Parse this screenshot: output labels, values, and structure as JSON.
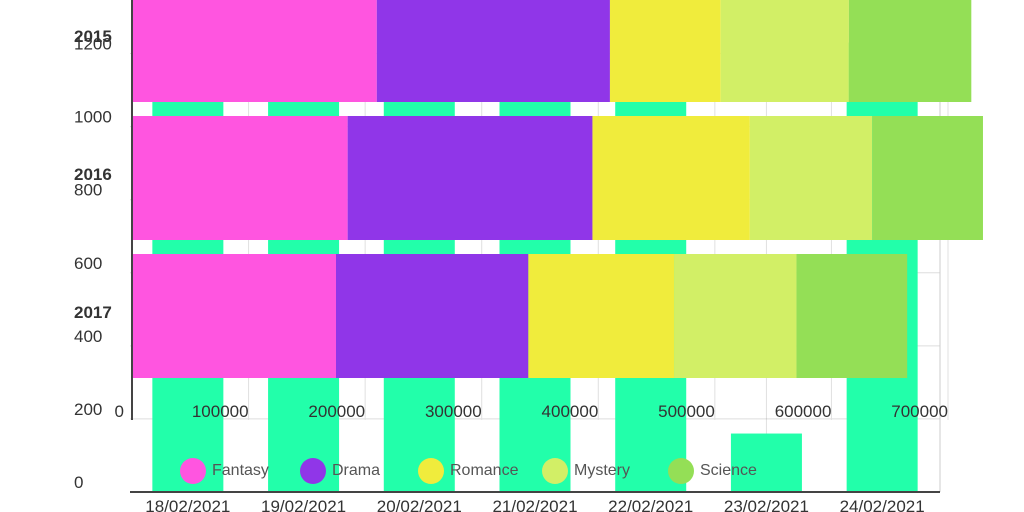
{
  "chart_data": [
    {
      "type": "bar",
      "orientation": "vertical",
      "categories": [
        "18/02/2021",
        "19/02/2021",
        "20/02/2021",
        "21/02/2021",
        "22/02/2021",
        "23/02/2021",
        "24/02/2021"
      ],
      "values": [
        1180,
        1180,
        1180,
        1180,
        1180,
        160,
        1230
      ],
      "ylim": [
        0,
        1300
      ],
      "yticks": [
        0,
        200,
        400,
        600,
        800,
        1000,
        1200
      ],
      "color": "#22ffaa",
      "grid": true
    },
    {
      "type": "bar",
      "orientation": "horizontal",
      "stacked": true,
      "categories": [
        "2015",
        "2016",
        "2017"
      ],
      "series": [
        {
          "name": "Fantasy",
          "color": "#ff55e0",
          "values": [
            210000,
            185000,
            175000
          ]
        },
        {
          "name": "Drama",
          "color": "#9036e8",
          "values": [
            200000,
            210000,
            165000
          ]
        },
        {
          "name": "Romance",
          "color": "#f0ec3c",
          "values": [
            95000,
            135000,
            125000
          ]
        },
        {
          "name": "Mystery",
          "color": "#d2ef66",
          "values": [
            110000,
            105000,
            105000
          ]
        },
        {
          "name": "Science",
          "color": "#94df56",
          "values": [
            105000,
            95000,
            95000
          ]
        }
      ],
      "xlim": [
        0,
        700000
      ],
      "xticks": [
        0,
        100000,
        200000,
        300000,
        400000,
        500000,
        600000,
        700000
      ],
      "legend": "bottom",
      "grid": true
    }
  ]
}
